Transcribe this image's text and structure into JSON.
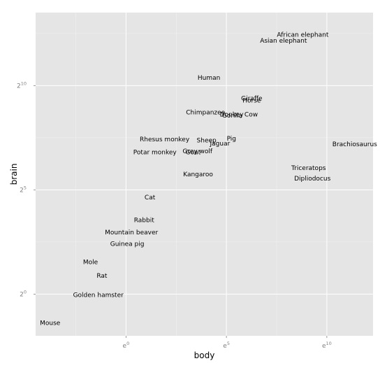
{
  "chart_data": {
    "type": "scatter",
    "title": "",
    "xlabel": "body",
    "ylabel": "brain",
    "x_scale": "log_e",
    "y_scale": "log_2",
    "xlim": [
      -4.5,
      12.3
    ],
    "ylim": [
      -2.0,
      13.5
    ],
    "grid": true,
    "x_ticks": [
      {
        "value": 0,
        "base": "e",
        "exp": "0"
      },
      {
        "value": 5,
        "base": "e",
        "exp": "5"
      },
      {
        "value": 10,
        "base": "e",
        "exp": "10"
      }
    ],
    "y_ticks": [
      {
        "value": 0,
        "base": "2",
        "exp": "0"
      },
      {
        "value": 5,
        "base": "2",
        "exp": "5"
      },
      {
        "value": 10,
        "base": "2",
        "exp": "10"
      }
    ],
    "points": [
      {
        "label": "African elephant",
        "x": 8.8,
        "y": 12.45
      },
      {
        "label": "Asian elephant",
        "x": 7.84,
        "y": 12.15
      },
      {
        "label": "Human",
        "x": 4.13,
        "y": 10.38
      },
      {
        "label": "Giraffe",
        "x": 6.26,
        "y": 9.39
      },
      {
        "label": "Horse",
        "x": 6.26,
        "y": 9.29
      },
      {
        "label": "Chimpanzee",
        "x": 3.96,
        "y": 8.72
      },
      {
        "label": "Donkey",
        "x": 5.26,
        "y": 8.62
      },
      {
        "label": "Gorilla",
        "x": 5.29,
        "y": 8.56
      },
      {
        "label": "Cow",
        "x": 6.23,
        "y": 8.62
      },
      {
        "label": "Rhesus monkey",
        "x": 1.92,
        "y": 7.42
      },
      {
        "label": "Sheep",
        "x": 4.01,
        "y": 7.37
      },
      {
        "label": "Pig",
        "x": 5.25,
        "y": 7.46
      },
      {
        "label": "Jaguar",
        "x": 4.68,
        "y": 7.22
      },
      {
        "label": "Brachiosaurus",
        "x": 11.39,
        "y": 7.19
      },
      {
        "label": "Potar monkey",
        "x": 1.44,
        "y": 6.8
      },
      {
        "label": "Goat",
        "x": 3.34,
        "y": 6.8
      },
      {
        "label": "Grey wolf",
        "x": 3.56,
        "y": 6.85
      },
      {
        "label": "Triceratops",
        "x": 9.09,
        "y": 6.06
      },
      {
        "label": "Dipliodocus",
        "x": 9.28,
        "y": 5.55
      },
      {
        "label": "Kangaroo",
        "x": 3.59,
        "y": 5.75
      },
      {
        "label": "Cat",
        "x": 1.19,
        "y": 4.64
      },
      {
        "label": "Rabbit",
        "x": 0.9,
        "y": 3.56
      },
      {
        "label": "Mountain beaver",
        "x": 0.27,
        "y": 2.97
      },
      {
        "label": "Guinea pig",
        "x": 0.06,
        "y": 2.42
      },
      {
        "label": "Mole",
        "x": -1.77,
        "y": 1.54
      },
      {
        "label": "Rat",
        "x": -1.2,
        "y": 0.88
      },
      {
        "label": "Golden hamster",
        "x": -1.38,
        "y": -0.04
      },
      {
        "label": "Mouse",
        "x": -3.78,
        "y": -1.38
      }
    ]
  },
  "colors": {
    "panel_bg": "#e5e5e5",
    "grid_major": "#ffffff",
    "grid_minor": "#f2f2f2",
    "tick_text": "#7f7f7f",
    "axis_title": "#000000",
    "point_label": "#000000"
  }
}
